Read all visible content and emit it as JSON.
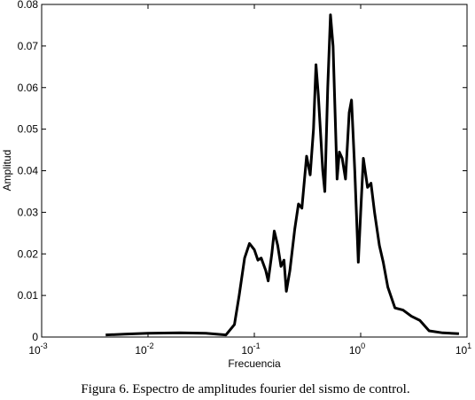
{
  "chart_data": {
    "type": "line",
    "log_x": true,
    "x_label": "Frecuencia",
    "y_label": "Amplitud",
    "caption": "Figura 6. Espectro de amplitudes fourier del sismo de control.",
    "xlim": [
      0.001,
      10
    ],
    "ylim": [
      0,
      0.08
    ],
    "xticks": [
      {
        "value": 0.001,
        "label": "10",
        "exponent": "-3"
      },
      {
        "value": 0.01,
        "label": "10",
        "exponent": "-2"
      },
      {
        "value": 0.1,
        "label": "10",
        "exponent": "-1"
      },
      {
        "value": 1,
        "label": "10",
        "exponent": "0"
      },
      {
        "value": 10,
        "label": "10",
        "exponent": "1"
      }
    ],
    "yticks": [
      0,
      0.01,
      0.02,
      0.03,
      0.04,
      0.05,
      0.06,
      0.07,
      0.08
    ],
    "x": [
      0.004,
      0.006,
      0.01,
      0.02,
      0.035,
      0.054,
      0.065,
      0.072,
      0.081,
      0.09,
      0.1,
      0.108,
      0.116,
      0.128,
      0.135,
      0.146,
      0.154,
      0.166,
      0.178,
      0.19,
      0.2,
      0.216,
      0.24,
      0.26,
      0.28,
      0.31,
      0.335,
      0.36,
      0.38,
      0.4,
      0.44,
      0.46,
      0.49,
      0.52,
      0.55,
      0.6,
      0.63,
      0.67,
      0.72,
      0.78,
      0.82,
      0.88,
      0.95,
      1.0,
      1.06,
      1.16,
      1.25,
      1.35,
      1.5,
      1.63,
      1.8,
      2.1,
      2.5,
      3.0,
      3.6,
      4.4,
      5.9,
      8.4
    ],
    "series": [
      {
        "color": "#000000",
        "values": [
          0.0005,
          0.0007,
          0.0009,
          0.001,
          0.0009,
          0.0005,
          0.003,
          0.01,
          0.019,
          0.0225,
          0.021,
          0.0185,
          0.019,
          0.016,
          0.0135,
          0.02,
          0.0255,
          0.022,
          0.017,
          0.0185,
          0.011,
          0.016,
          0.026,
          0.032,
          0.031,
          0.0435,
          0.039,
          0.05,
          0.0655,
          0.058,
          0.04,
          0.035,
          0.06,
          0.0775,
          0.07,
          0.038,
          0.0445,
          0.043,
          0.038,
          0.054,
          0.057,
          0.04,
          0.018,
          0.03,
          0.043,
          0.036,
          0.037,
          0.03,
          0.022,
          0.018,
          0.012,
          0.007,
          0.0065,
          0.005,
          0.004,
          0.0015,
          0.001,
          0.0008
        ]
      }
    ]
  }
}
